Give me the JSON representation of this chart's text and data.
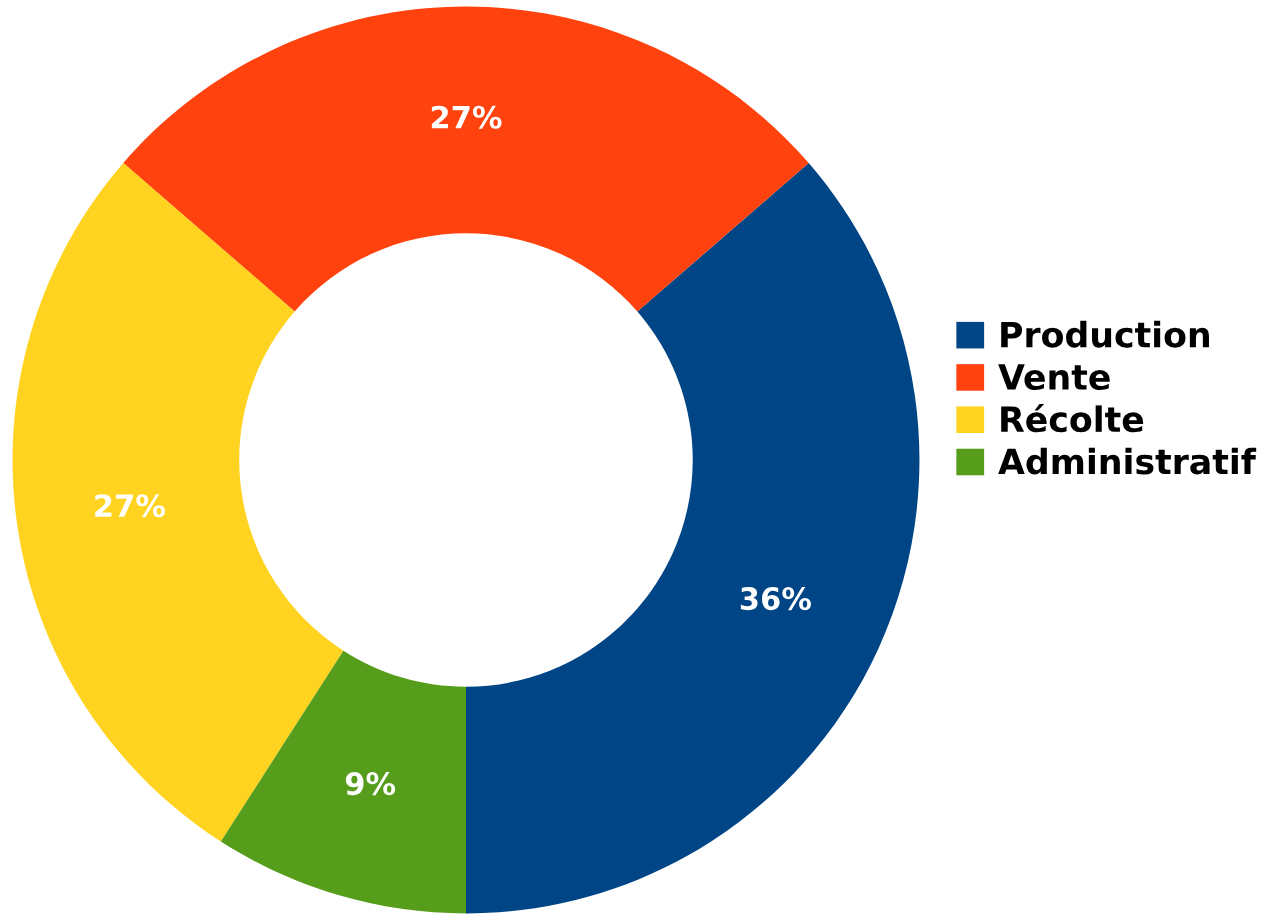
{
  "chart_data": {
    "type": "donut",
    "categories": [
      "Production",
      "Vente",
      "Récolte",
      "Administratif"
    ],
    "values": [
      36,
      27,
      27,
      9
    ],
    "colors": [
      "#004586",
      "#ff420e",
      "#ffd320",
      "#579d1c"
    ],
    "value_labels": [
      "36%",
      "27%",
      "27%",
      "9%"
    ],
    "legend": "right"
  }
}
